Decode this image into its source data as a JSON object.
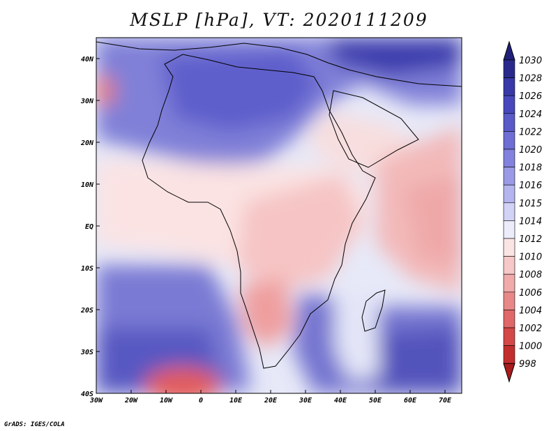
{
  "title": "MSLP [hPa], VT: 2020111209",
  "credit": "GrADS: IGES/COLA",
  "lat_ticks": [
    "40N",
    "30N",
    "20N",
    "10N",
    "EQ",
    "10S",
    "20S",
    "30S",
    "40S"
  ],
  "lon_ticks": [
    "30W",
    "20W",
    "10W",
    "0",
    "10E",
    "20E",
    "30E",
    "40E",
    "50E",
    "60E",
    "70E"
  ],
  "colorbar": {
    "labels": [
      "1030",
      "1028",
      "1026",
      "1024",
      "1022",
      "1020",
      "1018",
      "1016",
      "1015",
      "1014",
      "1012",
      "1010",
      "1008",
      "1006",
      "1004",
      "1002",
      "1000",
      "998"
    ],
    "colors": [
      "#2a2a8c",
      "#3838a8",
      "#4848bc",
      "#5a5ac8",
      "#6e6ed4",
      "#8282de",
      "#9a9ae6",
      "#b4b4ee",
      "#d2d2f6",
      "#ececfa",
      "#fbe4e4",
      "#f6c8c8",
      "#f0aaaa",
      "#e88888",
      "#e06868",
      "#d44848",
      "#c22e2e",
      "#a81c1c"
    ],
    "low_cap_color": "#a81c1c",
    "high_cap_color": "#20207a"
  },
  "colors": {
    "background": "#ffffff",
    "coastline": "#000000"
  }
}
